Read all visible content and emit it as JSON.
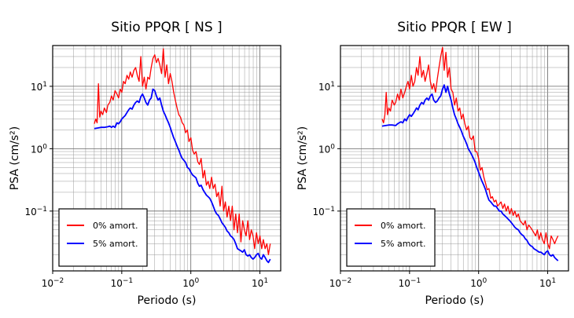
{
  "chart_data": [
    {
      "type": "line",
      "title": "Sitio PPQR [ NS ]",
      "xlabel": "Periodo (s)",
      "ylabel": "PSA (cm/s²)",
      "xscale": "log",
      "yscale": "log",
      "xlim": [
        0.01,
        20
      ],
      "ylim": [
        0.011,
        45
      ],
      "grid": true,
      "legend_position": "bottom-left",
      "x_ticks": [
        {
          "value": 0.01,
          "label": "10",
          "exp": "−2"
        },
        {
          "value": 0.1,
          "label": "10",
          "exp": "−1"
        },
        {
          "value": 1,
          "label": "10",
          "exp": "0"
        },
        {
          "value": 10,
          "label": "10",
          "exp": "1"
        }
      ],
      "y_ticks": [
        {
          "value": 0.1,
          "label": "10",
          "exp": "−1"
        },
        {
          "value": 1,
          "label": "10",
          "exp": "0"
        },
        {
          "value": 10,
          "label": "10",
          "exp": "1"
        }
      ],
      "series": [
        {
          "name": "0% amort.",
          "color": "#ff0000",
          "x": [
            0.04,
            0.042,
            0.044,
            0.046,
            0.048,
            0.05,
            0.053,
            0.056,
            0.06,
            0.063,
            0.067,
            0.071,
            0.075,
            0.08,
            0.085,
            0.09,
            0.095,
            0.1,
            0.106,
            0.112,
            0.119,
            0.126,
            0.133,
            0.141,
            0.15,
            0.159,
            0.168,
            0.178,
            0.189,
            0.2,
            0.212,
            0.224,
            0.238,
            0.252,
            0.267,
            0.283,
            0.3,
            0.317,
            0.336,
            0.356,
            0.377,
            0.4,
            0.423,
            0.448,
            0.475,
            0.503,
            0.533,
            0.564,
            0.597,
            0.632,
            0.669,
            0.709,
            0.75,
            0.794,
            0.841,
            0.89,
            0.94,
            1.0,
            1.06,
            1.12,
            1.19,
            1.26,
            1.33,
            1.41,
            1.5,
            1.58,
            1.68,
            1.78,
            1.88,
            2.0,
            2.11,
            2.24,
            2.37,
            2.51,
            2.66,
            2.82,
            2.98,
            3.16,
            3.35,
            3.55,
            3.76,
            3.98,
            4.22,
            4.47,
            4.73,
            5.01,
            5.31,
            5.62,
            5.96,
            6.31,
            6.68,
            7.08,
            7.5,
            7.94,
            8.41,
            8.91,
            9.44,
            10.0,
            10.6,
            11.2,
            11.9,
            12.6,
            13.3,
            14.1
          ],
          "y": [
            2.5,
            3.0,
            2.6,
            11.0,
            3.2,
            4.0,
            3.5,
            4.5,
            3.8,
            5.0,
            5.5,
            7.0,
            6.0,
            8.5,
            7.5,
            6.5,
            9.0,
            8.0,
            12.0,
            11.0,
            15.0,
            13.0,
            17.0,
            14.0,
            18.0,
            20.0,
            15.0,
            12.0,
            30.0,
            10.0,
            14.0,
            9.0,
            14.0,
            13.0,
            20.0,
            28.0,
            32.0,
            24.0,
            28.0,
            22.0,
            16.0,
            40.0,
            14.0,
            22.0,
            11.0,
            16.0,
            12.0,
            8.0,
            6.0,
            4.5,
            3.5,
            3.2,
            2.6,
            2.4,
            1.8,
            2.0,
            1.3,
            1.5,
            0.95,
            0.82,
            0.9,
            0.62,
            0.56,
            0.7,
            0.34,
            0.45,
            0.26,
            0.3,
            0.23,
            0.35,
            0.23,
            0.27,
            0.17,
            0.2,
            0.12,
            0.25,
            0.1,
            0.14,
            0.08,
            0.12,
            0.07,
            0.12,
            0.05,
            0.09,
            0.045,
            0.09,
            0.032,
            0.07,
            0.05,
            0.04,
            0.07,
            0.035,
            0.05,
            0.04,
            0.025,
            0.045,
            0.03,
            0.04,
            0.025,
            0.035,
            0.025,
            0.03,
            0.02,
            0.03
          ]
        },
        {
          "name": "5% amort.",
          "color": "#0000ff",
          "x": [
            0.04,
            0.045,
            0.05,
            0.056,
            0.063,
            0.067,
            0.071,
            0.075,
            0.08,
            0.085,
            0.09,
            0.095,
            0.1,
            0.106,
            0.112,
            0.119,
            0.126,
            0.133,
            0.141,
            0.15,
            0.159,
            0.168,
            0.178,
            0.189,
            0.2,
            0.212,
            0.224,
            0.238,
            0.252,
            0.267,
            0.283,
            0.3,
            0.317,
            0.336,
            0.356,
            0.377,
            0.4,
            0.423,
            0.448,
            0.475,
            0.503,
            0.533,
            0.564,
            0.597,
            0.632,
            0.669,
            0.709,
            0.75,
            0.794,
            0.841,
            0.89,
            0.94,
            1.0,
            1.06,
            1.12,
            1.19,
            1.26,
            1.33,
            1.41,
            1.5,
            1.58,
            1.68,
            1.78,
            1.88,
            2.0,
            2.11,
            2.24,
            2.37,
            2.51,
            2.66,
            2.82,
            2.98,
            3.16,
            3.35,
            3.55,
            3.76,
            3.98,
            4.22,
            4.47,
            4.73,
            5.01,
            5.31,
            5.62,
            5.96,
            6.31,
            6.68,
            7.08,
            7.5,
            7.94,
            8.41,
            8.91,
            9.44,
            10.0,
            10.6,
            11.2,
            11.9,
            12.6,
            13.3,
            14.1
          ],
          "y": [
            2.1,
            2.15,
            2.2,
            2.2,
            2.25,
            2.3,
            2.2,
            2.3,
            2.2,
            2.6,
            2.5,
            2.7,
            3.0,
            3.2,
            3.4,
            3.8,
            4.2,
            4.5,
            4.3,
            5.0,
            5.5,
            5.8,
            5.5,
            6.8,
            7.5,
            6.5,
            5.5,
            5.0,
            6.0,
            6.5,
            9.0,
            8.5,
            7.0,
            6.0,
            6.5,
            5.0,
            4.0,
            3.5,
            3.0,
            2.6,
            2.2,
            1.8,
            1.5,
            1.3,
            1.1,
            0.95,
            0.8,
            0.7,
            0.65,
            0.6,
            0.5,
            0.48,
            0.42,
            0.38,
            0.36,
            0.34,
            0.28,
            0.25,
            0.26,
            0.22,
            0.2,
            0.18,
            0.17,
            0.16,
            0.14,
            0.12,
            0.1,
            0.09,
            0.085,
            0.075,
            0.065,
            0.06,
            0.055,
            0.048,
            0.045,
            0.04,
            0.038,
            0.035,
            0.03,
            0.025,
            0.024,
            0.023,
            0.022,
            0.024,
            0.02,
            0.019,
            0.02,
            0.018,
            0.017,
            0.018,
            0.02,
            0.021,
            0.018,
            0.017,
            0.02,
            0.018,
            0.016,
            0.015,
            0.017
          ]
        }
      ]
    },
    {
      "type": "line",
      "title": "Sitio PPQR [ EW ]",
      "xlabel": "Periodo (s)",
      "ylabel": "PSA (cm/s²)",
      "xscale": "log",
      "yscale": "log",
      "xlim": [
        0.01,
        20
      ],
      "ylim": [
        0.011,
        45
      ],
      "grid": true,
      "legend_position": "bottom-left",
      "x_ticks": [
        {
          "value": 0.01,
          "label": "10",
          "exp": "−2"
        },
        {
          "value": 0.1,
          "label": "10",
          "exp": "−1"
        },
        {
          "value": 1,
          "label": "10",
          "exp": "0"
        },
        {
          "value": 10,
          "label": "10",
          "exp": "1"
        }
      ],
      "y_ticks": [
        {
          "value": 0.1,
          "label": "10",
          "exp": "−1"
        },
        {
          "value": 1,
          "label": "10",
          "exp": "0"
        },
        {
          "value": 10,
          "label": "10",
          "exp": "1"
        }
      ],
      "series": [
        {
          "name": "0% amort.",
          "color": "#ff0000",
          "x": [
            0.04,
            0.042,
            0.044,
            0.046,
            0.048,
            0.05,
            0.053,
            0.056,
            0.06,
            0.063,
            0.067,
            0.071,
            0.075,
            0.08,
            0.085,
            0.09,
            0.095,
            0.1,
            0.106,
            0.112,
            0.119,
            0.126,
            0.133,
            0.141,
            0.15,
            0.159,
            0.168,
            0.178,
            0.189,
            0.2,
            0.212,
            0.224,
            0.238,
            0.252,
            0.267,
            0.283,
            0.3,
            0.317,
            0.336,
            0.356,
            0.377,
            0.4,
            0.423,
            0.448,
            0.475,
            0.503,
            0.533,
            0.564,
            0.597,
            0.632,
            0.669,
            0.709,
            0.75,
            0.794,
            0.841,
            0.89,
            0.94,
            1.0,
            1.06,
            1.12,
            1.19,
            1.26,
            1.33,
            1.41,
            1.5,
            1.58,
            1.68,
            1.78,
            1.88,
            2.0,
            2.11,
            2.24,
            2.37,
            2.51,
            2.66,
            2.82,
            2.98,
            3.16,
            3.35,
            3.55,
            3.76,
            3.98,
            4.22,
            4.47,
            4.73,
            5.01,
            5.31,
            5.62,
            5.96,
            6.31,
            6.68,
            7.08,
            7.5,
            7.94,
            8.41,
            8.91,
            9.44,
            10.0,
            10.6,
            11.2,
            11.9,
            12.6,
            13.3,
            14.1
          ],
          "y": [
            3.0,
            2.6,
            3.5,
            8.0,
            3.5,
            4.5,
            4.0,
            6.0,
            5.0,
            5.5,
            7.5,
            6.0,
            9.0,
            6.5,
            8.0,
            10.0,
            12.0,
            9.0,
            15.0,
            10.0,
            12.0,
            20.0,
            15.0,
            30.0,
            14.0,
            18.0,
            12.0,
            16.0,
            22.0,
            12.0,
            9.0,
            11.0,
            8.0,
            13.0,
            20.0,
            30.0,
            42.0,
            18.0,
            35.0,
            14.0,
            20.0,
            9.0,
            8.0,
            5.0,
            6.5,
            4.0,
            4.5,
            3.0,
            3.6,
            2.5,
            2.0,
            2.3,
            1.5,
            1.4,
            1.6,
            0.9,
            0.9,
            0.7,
            0.45,
            0.5,
            0.35,
            0.28,
            0.22,
            0.23,
            0.16,
            0.17,
            0.14,
            0.15,
            0.12,
            0.13,
            0.14,
            0.11,
            0.13,
            0.1,
            0.12,
            0.09,
            0.11,
            0.085,
            0.1,
            0.08,
            0.09,
            0.07,
            0.065,
            0.06,
            0.07,
            0.05,
            0.06,
            0.055,
            0.05,
            0.045,
            0.04,
            0.05,
            0.035,
            0.045,
            0.035,
            0.03,
            0.045,
            0.03,
            0.025,
            0.04,
            0.035,
            0.03,
            0.035,
            0.04
          ]
        },
        {
          "name": "5% amort.",
          "color": "#0000ff",
          "x": [
            0.04,
            0.045,
            0.05,
            0.056,
            0.063,
            0.067,
            0.071,
            0.075,
            0.08,
            0.085,
            0.09,
            0.095,
            0.1,
            0.106,
            0.112,
            0.119,
            0.126,
            0.133,
            0.141,
            0.15,
            0.159,
            0.168,
            0.178,
            0.189,
            0.2,
            0.212,
            0.224,
            0.238,
            0.252,
            0.267,
            0.283,
            0.3,
            0.317,
            0.336,
            0.356,
            0.377,
            0.4,
            0.423,
            0.448,
            0.475,
            0.503,
            0.533,
            0.564,
            0.597,
            0.632,
            0.669,
            0.709,
            0.75,
            0.794,
            0.841,
            0.89,
            0.94,
            1.0,
            1.06,
            1.12,
            1.19,
            1.26,
            1.33,
            1.41,
            1.5,
            1.58,
            1.68,
            1.78,
            1.88,
            2.0,
            2.11,
            2.24,
            2.37,
            2.51,
            2.66,
            2.82,
            2.98,
            3.16,
            3.35,
            3.55,
            3.76,
            3.98,
            4.22,
            4.47,
            4.73,
            5.01,
            5.31,
            5.62,
            5.96,
            6.31,
            6.68,
            7.08,
            7.5,
            7.94,
            8.41,
            8.91,
            9.44,
            10.0,
            10.6,
            11.2,
            11.9,
            12.6,
            13.3,
            14.1
          ],
          "y": [
            2.3,
            2.35,
            2.4,
            2.4,
            2.35,
            2.5,
            2.6,
            2.7,
            2.6,
            3.0,
            2.8,
            3.2,
            3.5,
            3.3,
            3.6,
            4.0,
            4.5,
            4.2,
            5.0,
            5.5,
            5.2,
            6.0,
            6.5,
            6.0,
            7.0,
            7.5,
            6.0,
            5.5,
            5.8,
            6.5,
            7.0,
            9.0,
            10.5,
            8.0,
            10.0,
            7.5,
            6.0,
            4.5,
            3.5,
            3.0,
            2.5,
            2.2,
            1.9,
            1.6,
            1.4,
            1.2,
            1.0,
            0.9,
            0.8,
            0.7,
            0.6,
            0.5,
            0.42,
            0.35,
            0.3,
            0.26,
            0.22,
            0.18,
            0.15,
            0.14,
            0.13,
            0.12,
            0.12,
            0.11,
            0.1,
            0.1,
            0.09,
            0.085,
            0.08,
            0.075,
            0.07,
            0.065,
            0.06,
            0.055,
            0.052,
            0.05,
            0.045,
            0.042,
            0.04,
            0.036,
            0.034,
            0.03,
            0.028,
            0.027,
            0.025,
            0.024,
            0.023,
            0.022,
            0.022,
            0.021,
            0.02,
            0.022,
            0.023,
            0.02,
            0.019,
            0.02,
            0.018,
            0.017,
            0.016
          ]
        }
      ]
    }
  ]
}
